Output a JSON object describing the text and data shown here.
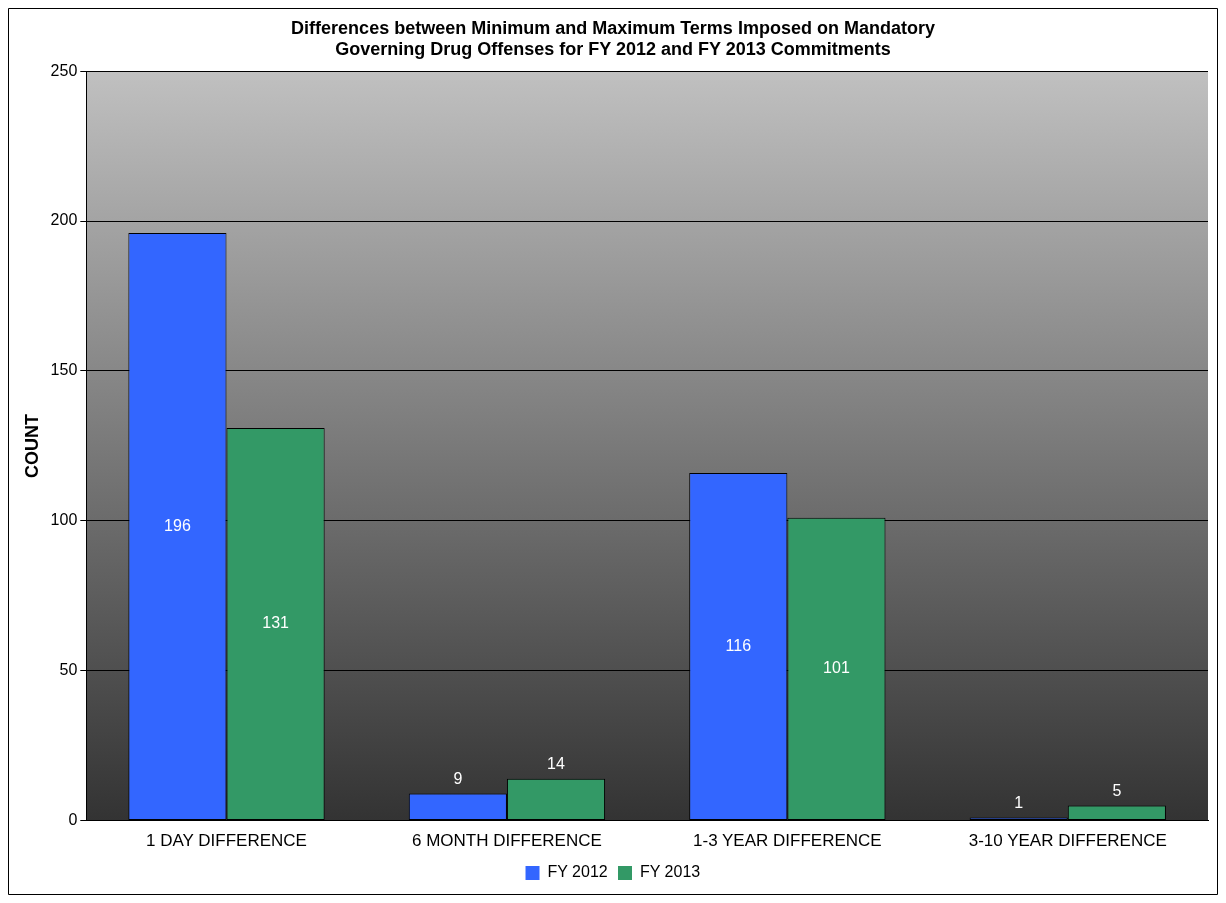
{
  "chart_data": {
    "type": "bar",
    "title": "Differences between Minimum and Maximum Terms Imposed on Mandatory\nGoverning Drug Offenses for FY 2012 and FY 2013 Commitments",
    "ylabel": "COUNT",
    "categories": [
      "1 DAY DIFFERENCE",
      "6 MONTH DIFFERENCE",
      "1-3 YEAR DIFFERENCE",
      "3-10 YEAR DIFFERENCE"
    ],
    "series": [
      {
        "name": "FY 2012",
        "color": "#3366ff",
        "values": [
          196,
          9,
          116,
          1
        ]
      },
      {
        "name": "FY 2013",
        "color": "#339966",
        "values": [
          131,
          14,
          101,
          5
        ]
      }
    ],
    "ylim": [
      0,
      250
    ],
    "yticks": [
      0,
      50,
      100,
      150,
      200,
      250
    ],
    "grid": "y",
    "legend": "bottom",
    "data_labels": true
  }
}
